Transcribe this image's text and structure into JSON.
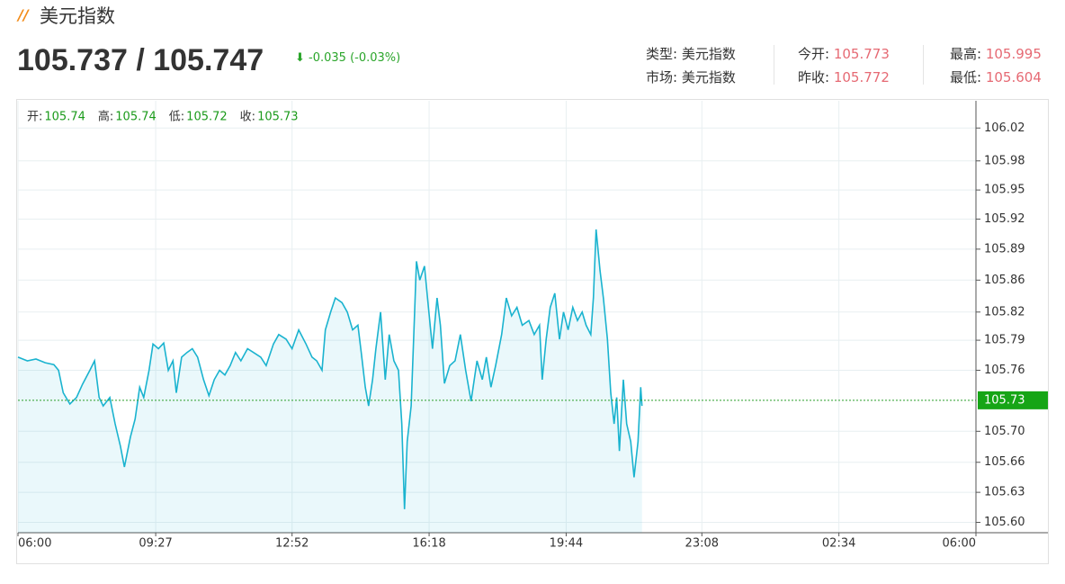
{
  "header": {
    "title": "美元指数",
    "price": "105.737 / 105.747",
    "change": "-0.035 (-0.03%)"
  },
  "info": [
    [
      {
        "label": "类型:",
        "value": "美元指数"
      },
      {
        "label": "今开:",
        "value": 105.773
      },
      {
        "label": "最高:",
        "value": 105.995
      }
    ],
    [
      {
        "label": "市场:",
        "value": "美元指数"
      },
      {
        "label": "昨收:",
        "value": 105.772
      },
      {
        "label": "最低:",
        "value": 105.604
      }
    ]
  ],
  "chart_data": {
    "type": "line",
    "ohlc": [
      {
        "label": "开:",
        "value": 105.74
      },
      {
        "label": "高:",
        "value": 105.74
      },
      {
        "label": "低:",
        "value": 105.72
      },
      {
        "label": "收:",
        "value": 105.73
      }
    ],
    "last": 105.73,
    "xlim": [
      0,
      1440
    ],
    "xticks": [
      {
        "value": 0,
        "label": "06:00"
      },
      {
        "value": 207,
        "label": "09:27"
      },
      {
        "value": 412,
        "label": "12:52"
      },
      {
        "value": 618,
        "label": "16:18"
      },
      {
        "value": 824,
        "label": "19:44"
      },
      {
        "value": 1028,
        "label": "23:08"
      },
      {
        "value": 1234,
        "label": "02:34"
      },
      {
        "value": 1440,
        "label": "06:00"
      }
    ],
    "ylim": [
      105.589,
      106.049
    ],
    "yticks": [
      {
        "value": 105.6,
        "label": "105.60"
      },
      {
        "value": 105.632,
        "label": "105.63"
      },
      {
        "value": 105.664,
        "label": "105.66"
      },
      {
        "value": 105.697,
        "label": "105.70"
      },
      {
        "value": 105.762,
        "label": "105.76"
      },
      {
        "value": 105.794,
        "label": "105.79"
      },
      {
        "value": 105.824,
        "label": "105.82"
      },
      {
        "value": 105.858,
        "label": "105.86"
      },
      {
        "value": 105.891,
        "label": "105.89"
      },
      {
        "value": 105.923,
        "label": "105.92"
      },
      {
        "value": 105.954,
        "label": "105.95"
      },
      {
        "value": 105.985,
        "label": "105.98"
      },
      {
        "value": 106.02,
        "label": "106.02"
      }
    ],
    "grid": true,
    "x": [
      0,
      14,
      27,
      41,
      54,
      61,
      68,
      78,
      88,
      97,
      108,
      115,
      122,
      128,
      138,
      146,
      154,
      160,
      169,
      176,
      183,
      189,
      197,
      203,
      211,
      219,
      226,
      233,
      238,
      246,
      254,
      262,
      270,
      279,
      287,
      295,
      303,
      311,
      319,
      327,
      335,
      345,
      354,
      365,
      373,
      384,
      392,
      403,
      412,
      422,
      433,
      442,
      449,
      457,
      462,
      470,
      477,
      487,
      495,
      503,
      511,
      516,
      522,
      527,
      533,
      538,
      545,
      552,
      558,
      565,
      572,
      577,
      581,
      585,
      591,
      596,
      599,
      604,
      611,
      617,
      623,
      630,
      635,
      641,
      649,
      657,
      665,
      673,
      681,
      690,
      698,
      704,
      711,
      718,
      727,
      734,
      742,
      750,
      758,
      768,
      776,
      784,
      788,
      794,
      800,
      807,
      814,
      820,
      827,
      834,
      841,
      848,
      854,
      861,
      865,
      869,
      875,
      880,
      886,
      891,
      896,
      900,
      904,
      910,
      915,
      921,
      926,
      932,
      936,
      938
    ],
    "series": [
      {
        "color": "#1ab3cf",
        "values": [
          105.776,
          105.772,
          105.774,
          105.77,
          105.768,
          105.762,
          105.738,
          105.726,
          105.733,
          105.747,
          105.762,
          105.772,
          105.733,
          105.724,
          105.733,
          105.705,
          105.681,
          105.659,
          105.691,
          105.71,
          105.744,
          105.733,
          105.762,
          105.79,
          105.785,
          105.791,
          105.762,
          105.772,
          105.738,
          105.776,
          105.781,
          105.785,
          105.776,
          105.752,
          105.735,
          105.752,
          105.762,
          105.757,
          105.767,
          105.781,
          105.772,
          105.785,
          105.781,
          105.776,
          105.767,
          105.79,
          105.8,
          105.795,
          105.785,
          105.805,
          105.79,
          105.776,
          105.772,
          105.762,
          105.805,
          105.824,
          105.839,
          105.834,
          105.824,
          105.805,
          105.81,
          105.781,
          105.744,
          105.724,
          105.752,
          105.785,
          105.824,
          105.752,
          105.8,
          105.772,
          105.762,
          105.705,
          105.614,
          105.686,
          105.724,
          105.82,
          105.878,
          105.858,
          105.873,
          105.829,
          105.785,
          105.839,
          105.81,
          105.748,
          105.767,
          105.772,
          105.8,
          105.762,
          105.729,
          105.772,
          105.752,
          105.776,
          105.744,
          105.767,
          105.8,
          105.839,
          105.82,
          105.829,
          105.81,
          105.815,
          105.8,
          105.81,
          105.752,
          105.795,
          105.829,
          105.844,
          105.795,
          105.824,
          105.805,
          105.829,
          105.815,
          105.824,
          105.81,
          105.8,
          105.839,
          105.912,
          105.868,
          105.839,
          105.795,
          105.738,
          105.705,
          105.733,
          105.676,
          105.752,
          105.705,
          105.686,
          105.648,
          105.686,
          105.744,
          105.724
        ]
      }
    ]
  }
}
